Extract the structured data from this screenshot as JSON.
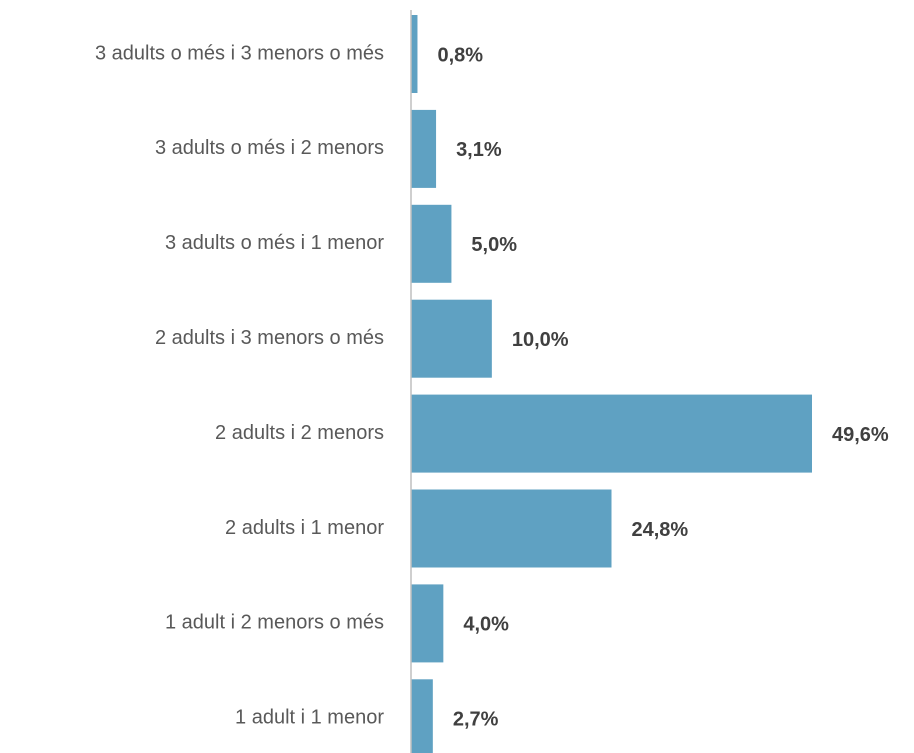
{
  "chart_data": {
    "type": "barh",
    "categories": [
      "3 adults o més i 3 menors o més",
      "3 adults o més i 2 menors",
      "3 adults o més i 1 menor",
      "2 adults i 3 menors o més",
      "2 adults i 2 menors",
      "2 adults i 1 menor",
      "1 adult i 2 menors o més",
      "1 adult i 1 menor"
    ],
    "values": [
      0.8,
      3.1,
      5.0,
      10.0,
      49.6,
      24.8,
      4.0,
      2.7
    ],
    "value_labels": [
      "0,8%",
      "3,1%",
      "5,0%",
      "10,0%",
      "49,6%",
      "24,8%",
      "4,0%",
      "2,7%"
    ],
    "color": "#5fa1c2"
  }
}
